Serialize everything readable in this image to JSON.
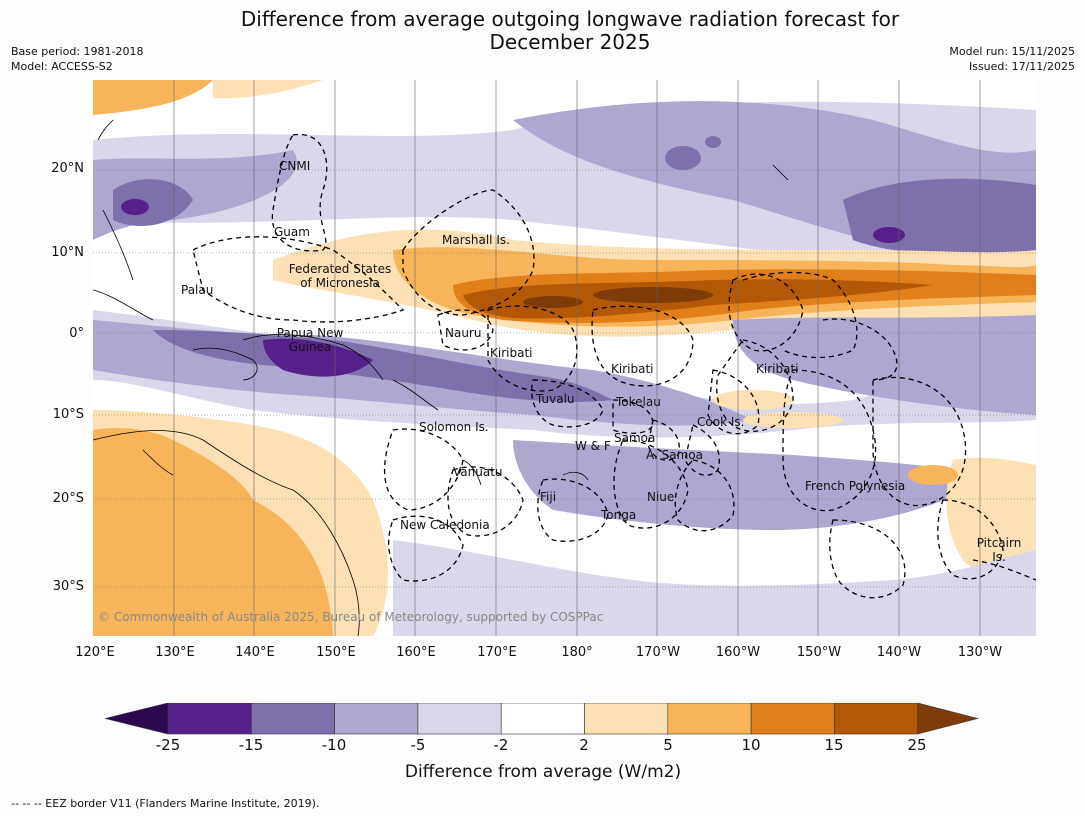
{
  "title_line1": "Difference from average outgoing longwave radiation forecast for",
  "title_line2": "December 2025",
  "base_period": "Base period: 1981-2018",
  "model": "Model: ACCESS-S2",
  "model_run": "Model run: 15/11/2025",
  "issued": "Issued: 17/11/2025",
  "lat_labels": [
    "20°N",
    "10°N",
    "0°",
    "10°S",
    "20°S",
    "30°S"
  ],
  "lon_labels": [
    "120°E",
    "130°E",
    "140°E",
    "150°E",
    "160°E",
    "170°E",
    "180°",
    "170°W",
    "160°W",
    "150°W",
    "140°W",
    "130°W"
  ],
  "region_labels": {
    "cnmi": "CNMI",
    "guam": "Guam",
    "marshall": "Marshall Is.",
    "fsm_1": "Federated States",
    "fsm_2": "of Micronesia",
    "palau": "Palau",
    "png_1": "Papua New",
    "png_2": "Guinea",
    "nauru": "Nauru",
    "kiribati_w": "Kiribati",
    "kiribati_c": "Kiribati",
    "kiribati_e": "Kiribati",
    "tuvalu": "Tuvalu",
    "tokelau": "Tokelau",
    "cook": "Cook Is.",
    "solomon": "Solomon Is.",
    "wf": "W & F",
    "samoa": "Samoa",
    "asamoa": "A. Samoa",
    "vanuatu": "Vanuatu",
    "fiji": "Fiji",
    "niue": "Niue",
    "tonga": "Tonga",
    "french_polynesia": "French Polynesia",
    "new_caledonia": "New Caledonia",
    "pitcairn_1": "Pitcairn",
    "pitcairn_2": "Is."
  },
  "copyright": "© Commonwealth of Australia 2025, Bureau of Meteorology, supported by COSPPac",
  "colorbar": {
    "ticks": [
      "-25",
      "-15",
      "-10",
      "-5",
      "-2",
      "2",
      "5",
      "10",
      "15",
      "25"
    ],
    "colors": [
      "#2d0a4f",
      "#56208a",
      "#7e6fad",
      "#aea7d0",
      "#d9d8ea",
      "#ffffff",
      "#fde0b3",
      "#f8b45b",
      "#e0801a",
      "#b35806",
      "#7f3b08"
    ],
    "title": "Difference from average (W/m2)"
  },
  "footnote": "--  --  -- EEZ border V11 (Flanders Marine Institute, 2019)."
}
